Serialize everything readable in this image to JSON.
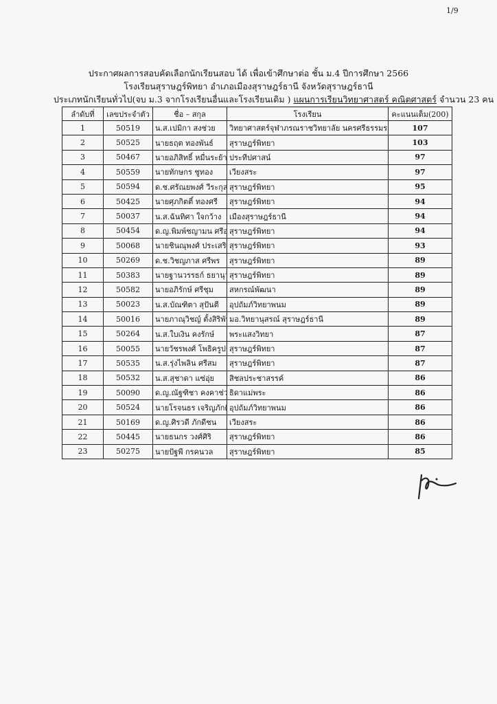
{
  "page_number": "1/9",
  "header": {
    "line1": "ประกาศผลการสอบคัดเลือกนักเรียนสอบ ได้ เพื่อเข้าศึกษาต่อ ชั้น ม.4 ปีการศึกษา 2566",
    "line2": "โรงเรียนสุราษฎร์พิทยา อำเภอเมืองสุราษฎร์ธานี  จังหวัดสุราษฎร์ธานี",
    "line3_prefix": "ประเภทนักเรียนทั่วไป(จบ ม.3 จากโรงเรียนอื่นและโรงเรียนเดิม ) ",
    "line3_plan": "แผนการเรียนวิทยาศาสตร์ คณิตศาสตร์",
    "line3_suffix": "  จำนวน  23  คน"
  },
  "table": {
    "columns": [
      "ลำดับที่",
      "เลขประจำตัว",
      "ชื่อ – สกุล",
      "โรงเรียน",
      "คะแนนเต็ม(200)"
    ],
    "rows": [
      [
        "1",
        "50519",
        "น.ส.เปมิกา สงช่วย",
        "วิทยาศาสตร์จุฬาภรณราชวิทยาลัย นครศรีธรรมราช",
        "107"
      ],
      [
        "2",
        "50525",
        "นายธฤต ทองพันธ์",
        "สุราษฎร์พิทยา",
        "103"
      ],
      [
        "3",
        "50467",
        "นายอภิสิทธิ์ หมื่นระย้า",
        "ประทีปศาสน์",
        "97"
      ],
      [
        "4",
        "50559",
        "นายทักษกร ชูทอง",
        "เวียงสระ",
        "97"
      ],
      [
        "5",
        "50594",
        "ด.ช.ศรัณยพงศ์ วีระกุลนิติรัตน์",
        "สุราษฎร์พิทยา",
        "95"
      ],
      [
        "6",
        "50425",
        "นายศุภกิตติ์ ทองศรี",
        "สุราษฎร์พิทยา",
        "94"
      ],
      [
        "7",
        "50037",
        "น.ส.ฉันทิศา ใจกว้าง",
        "เมืองสุราษฎร์ธานี",
        "94"
      ],
      [
        "8",
        "50454",
        "ด.ญ.พิมพ์ชญามน ศรีอาภานนท์",
        "สุราษฎร์พิทยา",
        "94"
      ],
      [
        "9",
        "50068",
        "นายชินณุพงศ์ ประเสริฐเพชรมณี",
        "สุราษฎร์พิทยา",
        "93"
      ],
      [
        "10",
        "50269",
        "ด.ช.วิชญภาส ศรีพร",
        "สุราษฎร์พิทยา",
        "89"
      ],
      [
        "11",
        "50383",
        "นายฐานวรรธก์ ธยานุวัฒนวงศ์",
        "สุราษฎร์พิทยา",
        "89"
      ],
      [
        "12",
        "50582",
        "นายอภิรักษ์ ศรีชุม",
        "สหกรณ์พัฒนา",
        "89"
      ],
      [
        "13",
        "50023",
        "น.ส.บัณฑิตา สุปันตี",
        "อุปถัมภ์วิทยาพนม",
        "89"
      ],
      [
        "14",
        "50016",
        "นายภาณุวิชญ์ ตั้งสิริพันธกุล",
        "มอ.วิทยานุสรณ์ สุราษฎร์ธานี",
        "89"
      ],
      [
        "15",
        "50264",
        "น.ส.ใบเงิน คงรักษ์",
        "พระแสงวิทยา",
        "87"
      ],
      [
        "16",
        "50055",
        "นายวัชรพงศ์ โพธิครูประเสริฐ",
        "สุราษฎร์พิทยา",
        "87"
      ],
      [
        "17",
        "50535",
        "น.ส.รุ่งไพลิน ศรีสม",
        "สุราษฎร์พิทยา",
        "87"
      ],
      [
        "18",
        "50532",
        "น.ส.สุชาดา แซ่อุ่ย",
        "สิชลประชาสรรค์",
        "86"
      ],
      [
        "19",
        "50090",
        "ด.ญ.ณัฐฑิชา คงคาช่วย",
        "ธิดาแม่พระ",
        "86"
      ],
      [
        "20",
        "50524",
        "นายโรจนธร เจริญภักดี",
        "อุปถัมภ์วิทยาพนม",
        "86"
      ],
      [
        "21",
        "50169",
        "ด.ญ.ศิรวดี ภักดีชน",
        "เวียงสระ",
        "86"
      ],
      [
        "22",
        "50445",
        "นายธนกร วงศ์ศิริ",
        "สุราษฎร์พิทยา",
        "86"
      ],
      [
        "23",
        "50275",
        "นายปัฐพี กรคนวล",
        "สุราษฎร์พิทยา",
        "85"
      ]
    ]
  }
}
